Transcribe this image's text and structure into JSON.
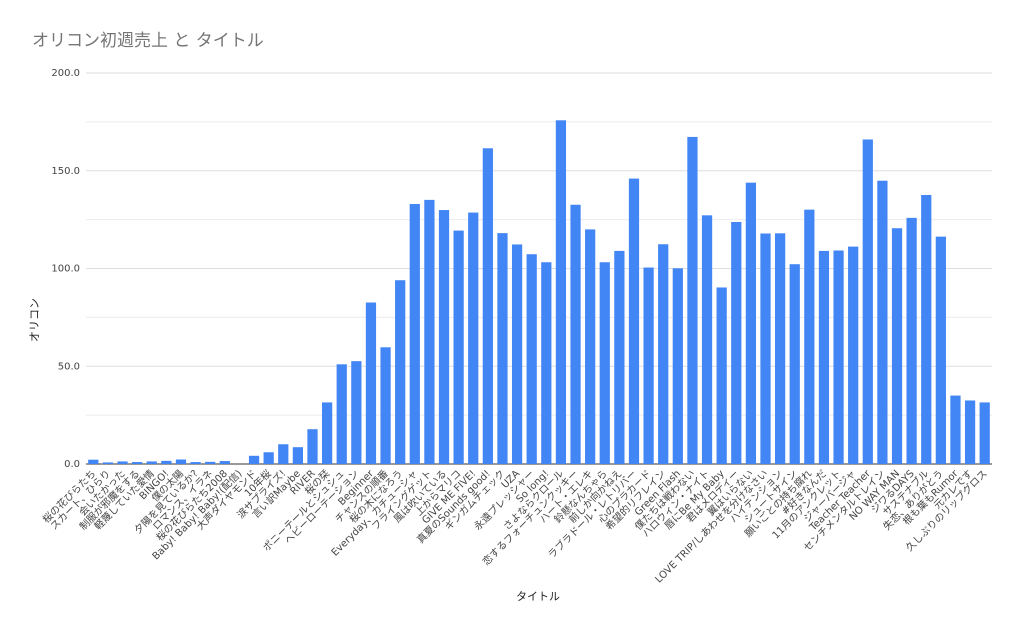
{
  "chart_data": {
    "type": "bar",
    "title": "オリコン初週売上 と タイトル",
    "xlabel": "タイトル",
    "ylabel": "オリコン",
    "ylim": [
      0,
      200
    ],
    "yticks": [
      "0.0",
      "50.0",
      "100.0",
      "150.0",
      "200.0"
    ],
    "grid": true,
    "legend": "none",
    "bar_color": "#4285f4",
    "x_tick_labels": [
      "桜の花びらたち",
      "スカート、ひらり",
      "会いたかった",
      "制服が邪魔をする",
      "軽蔑していた愛情",
      "BINGO!",
      "僕の太陽",
      "夕陽を見ているか?",
      "ロマンス、イラネ",
      "桜の花びらたち2008",
      "Baby! Baby! Baby!(配信)",
      "大声ダイヤモンド",
      "10年桜",
      "涙サプライズ!",
      "言い訳Maybe",
      "RIVER",
      "桜の栞",
      "ポニーテールとシュシュ",
      "ヘビーローテーション",
      "Beginner",
      "チャンスの順番",
      "桜の木になろう",
      "Everyday、カチューシャ",
      "フライングゲット",
      "風は吹いている",
      "上からマリコ",
      "GIVE ME FIVE!",
      "真夏のSounds good!",
      "ギンガムチェック",
      "UZA",
      "永遠プレッシャー",
      "So long!",
      "さよならクロール",
      "恋するフォーチュンクッキー",
      "ハート・エレキ",
      "鈴懸なんちゃら",
      "前しか向かねえ",
      "ラブラドール・レトリバー",
      "心のプラカード",
      "希望的リフレイン",
      "Green Flash",
      "僕たちは戦わない",
      "ハロウィン・ナイト",
      "唇にBe My Baby",
      "君はメロディー",
      "翼はいらない",
      "LOVE TRIP/しあわせを分けなさい",
      "ハイテンション",
      "シュートサイン",
      "願いごとの持ち腐れ",
      "#好きなんだ",
      "11月のアンクレット",
      "ジャーバージャ",
      "Teacher Teacher",
      "センチメンタルトレイン",
      "NO WAY MAN",
      "ジワるDAYS",
      "サステナブル",
      "失恋、ありがとう",
      "根も葉もRumor",
      "元カレです",
      "久しぶりのリップグロス"
    ],
    "categories": [
      "桜の花びらたち",
      "スカート、ひらり",
      "会いたかった",
      "制服が邪魔をする",
      "軽蔑していた愛情",
      "BINGO!",
      "僕の太陽",
      "夕陽を見ているか?",
      "ロマンス、イラネ",
      "桜の花びらたち2008",
      "Baby! Baby! Baby!(配信)",
      "大声ダイヤモンド",
      "10年桜",
      "涙サプライズ!",
      "言い訳Maybe",
      "RIVER",
      "桜の栞",
      "ポニーテールとシュシュ",
      "ヘビーローテーション",
      "Beginner",
      "チャンスの順番",
      "桜の木になろう",
      "Everyday、カチューシャ",
      "フライングゲット",
      "風は吹いている",
      "上からマリコ",
      "GIVE ME FIVE!",
      "真夏のSounds good!",
      "ギンガムチェック",
      "UZA",
      "永遠プレッシャー",
      "So long!",
      "さよならクロール",
      "恋するフォーチュンクッキー",
      "ハート・エレキ",
      "鈴懸なんちゃら",
      "前しか向かねえ",
      "ラブラドール・レトリバー",
      "心のプラカード",
      "希望的リフレイン",
      "Green Flash",
      "僕たちは戦わない",
      "ハロウィン・ナイト",
      "唇にBe My Baby",
      "君はメロディー",
      "翼はいらない",
      "LOVE TRIP/しあわせを分けなさい",
      "ハイテンション",
      "シュートサイン",
      "願いごとの持ち腐れ",
      "#好きなんだ",
      "11月のアンクレット",
      "ジャーバージャ",
      "Teacher Teacher",
      "センチメンタルトレイン",
      "NO WAY MAN",
      "ジワるDAYS",
      "サステナブル",
      "失恋、ありがとう",
      "根も葉もRumor",
      "元カレです",
      "久しぶりのリップグロス"
    ],
    "values": [
      2.2,
      0.8,
      1.3,
      1.0,
      1.3,
      1.6,
      2.3,
      1.0,
      1.1,
      1.5,
      0.0,
      4.2,
      6.0,
      10.1,
      8.6,
      17.8,
      31.5,
      51.0,
      52.6,
      82.6,
      59.7,
      94.0,
      133.0,
      135.1,
      129.9,
      119.4,
      128.6,
      161.5,
      118.1,
      112.3,
      107.3,
      103.2,
      175.8,
      132.6,
      120.0,
      103.2,
      109.0,
      146.0,
      100.5,
      112.4,
      100.1,
      167.3,
      127.2,
      90.3,
      123.8,
      143.9,
      117.9,
      118.0,
      102.2,
      130.1,
      109.0,
      109.2,
      111.2,
      166.0,
      144.9,
      120.6,
      125.9,
      137.6,
      116.3,
      35.0,
      32.5,
      31.5
    ]
  }
}
